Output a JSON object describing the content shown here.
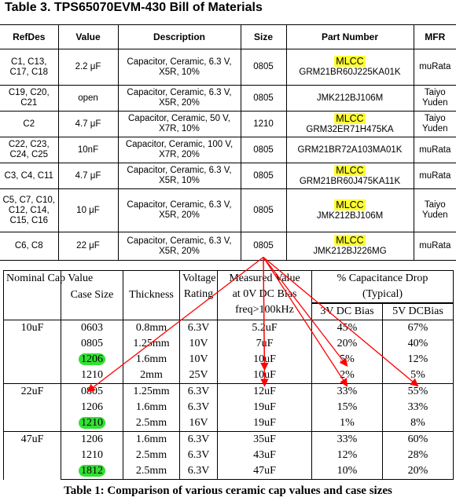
{
  "bom": {
    "title": "Table 3. TPS65070EVM-430 Bill of Materials",
    "headers": [
      "RefDes",
      "Value",
      "Description",
      "Size",
      "Part Number",
      "MFR"
    ],
    "highlight_tag": "MLCC",
    "rows": [
      {
        "refdes": "C1, C13, C17, C18",
        "value": "2.2 μF",
        "desc": "Capacitor, Ceramic, 6.3 V, X5R, 10%",
        "size": "0805",
        "tag": "MLCC",
        "part": "GRM21BR60J225KA01K",
        "mfr": "muRata"
      },
      {
        "refdes": "C19, C20, C21",
        "value": "open",
        "desc": "Capacitor, Ceramic, 6.3 V, X5R, 20%",
        "size": "0805",
        "tag": "",
        "part": "JMK212BJ106M",
        "mfr": "Taiyo Yuden"
      },
      {
        "refdes": "C2",
        "value": "4.7 μF",
        "desc": "Capacitor, Ceramic, 50 V, X7R, 10%",
        "size": "1210",
        "tag": "MLCC",
        "part": "GRM32ER71H475KA",
        "mfr": "Taiyo Yuden"
      },
      {
        "refdes": "C22, C23, C24, C25",
        "value": "10nF",
        "desc": "Capacitor, Ceramic, 100 V, X7R, 20%",
        "size": "0805",
        "tag": "",
        "part": "GRM21BR72A103MA01K",
        "mfr": "muRata"
      },
      {
        "refdes": "C3, C4, C11",
        "value": "4.7 μF",
        "desc": "Capacitor, Ceramic, 6.3 V, X5R, 10%",
        "size": "0805",
        "tag": "MLCC",
        "part": "GRM21BR60J475KA11K",
        "mfr": "muRata"
      },
      {
        "refdes": "C5, C7, C10, C12, C14, C15, C16",
        "value": "10 μF",
        "desc": "Capacitor, Ceramic, 6.3 V, X5R, 20%",
        "size": "0805",
        "tag": "MLCC",
        "part": "JMK212BJ106M",
        "mfr": "Taiyo Yuden"
      },
      {
        "refdes": "C6, C8",
        "value": "22 μF",
        "desc": "Capacitor, Ceramic, 6.3 V, X5R, 20%",
        "size": "0805",
        "tag": "MLCC",
        "part": "JMK212BJ226MG",
        "mfr": "muRata"
      }
    ]
  },
  "comparison": {
    "headers": {
      "nominal": "Nominal Cap Value",
      "case": "Case Size",
      "thickness": "Thickness",
      "voltage": "Voltage Rating",
      "measured_1": "Measured Value",
      "measured_2": "at 0V DC Bias",
      "measured_3": "freq>100kHz",
      "drop": "% Capacitance Drop",
      "drop_sub": "(Typical)",
      "bias3": "3V DC Bias",
      "bias5": "5V DCBias"
    },
    "groups": [
      {
        "nominal": "10uF",
        "rows": [
          {
            "case": "0603",
            "thick": "0.8mm",
            "volt": "6.3V",
            "meas": "5.2uF",
            "d3": "45%",
            "d5": "67%",
            "highlight": false
          },
          {
            "case": "0805",
            "thick": "1.25mm",
            "volt": "10V",
            "meas": "7uF",
            "d3": "20%",
            "d5": "40%",
            "highlight": false
          },
          {
            "case": "1206",
            "thick": "1.6mm",
            "volt": "10V",
            "meas": "10uF",
            "d3": "5%",
            "d5": "12%",
            "highlight": true
          },
          {
            "case": "1210",
            "thick": "2mm",
            "volt": "25V",
            "meas": "10uF",
            "d3": "2%",
            "d5": "5%",
            "highlight": false
          }
        ]
      },
      {
        "nominal": "22uF",
        "rows": [
          {
            "case": "0805",
            "thick": "1.25mm",
            "volt": "6.3V",
            "meas": "12uF",
            "d3": "33%",
            "d5": "55%",
            "highlight": false
          },
          {
            "case": "1206",
            "thick": "1.6mm",
            "volt": "6.3V",
            "meas": "19uF",
            "d3": "15%",
            "d5": "33%",
            "highlight": false
          },
          {
            "case": "1210",
            "thick": "2.5mm",
            "volt": "16V",
            "meas": "19uF",
            "d3": "1%",
            "d5": "8%",
            "highlight": true
          }
        ]
      },
      {
        "nominal": "47uF",
        "rows": [
          {
            "case": "1206",
            "thick": "1.6mm",
            "volt": "6.3V",
            "meas": "35uF",
            "d3": "33%",
            "d5": "60%",
            "highlight": false
          },
          {
            "case": "1210",
            "thick": "2.5mm",
            "volt": "6.3V",
            "meas": "43uF",
            "d3": "12%",
            "d5": "28%",
            "highlight": false
          },
          {
            "case": "1812",
            "thick": "2.5mm",
            "volt": "6.3V",
            "meas": "47uF",
            "d3": "10%",
            "d5": "20%",
            "highlight": true
          }
        ]
      }
    ],
    "caption": "Table 1: Comparison of various ceramic cap values and case sizes"
  },
  "colors": {
    "mlcc_highlight": "#ffff33",
    "case_highlight": "#33e033",
    "arrow": "#ff0000"
  }
}
